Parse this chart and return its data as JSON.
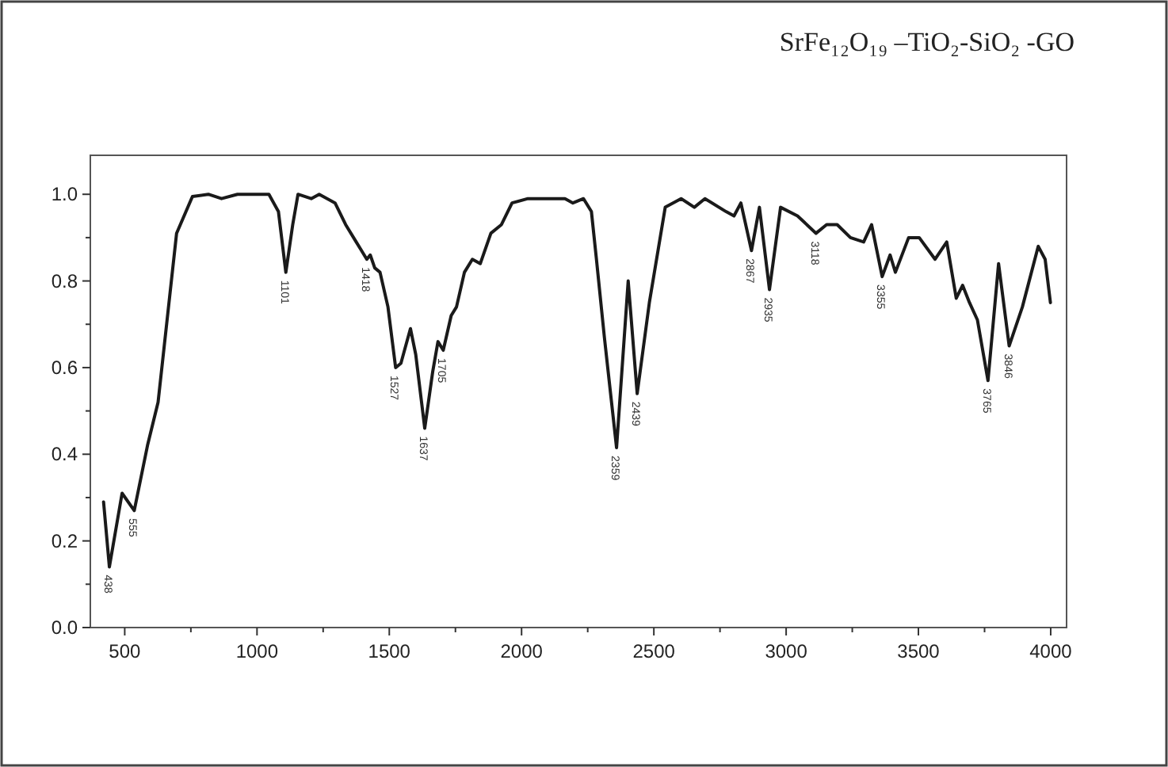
{
  "chart_data": {
    "type": "line",
    "title": "SrFe₁₂O₁₉ –TiO₂-SiO₂ -GO",
    "x": [
      420,
      442,
      490,
      536,
      586,
      626,
      696,
      756,
      816,
      866,
      926,
      1045,
      1081,
      1109,
      1135,
      1155,
      1205,
      1235,
      1295,
      1335,
      1375,
      1395,
      1415,
      1428,
      1445,
      1465,
      1495,
      1524,
      1544,
      1580,
      1600,
      1634,
      1664,
      1684,
      1704,
      1734,
      1754,
      1784,
      1814,
      1844,
      1884,
      1924,
      1964,
      2024,
      2164,
      2194,
      2234,
      2264,
      2283,
      2313,
      2359,
      2403,
      2437,
      2483,
      2543,
      2603,
      2653,
      2693,
      2773,
      2803,
      2829,
      2869,
      2899,
      2937,
      2979,
      3043,
      3113,
      3153,
      3193,
      3243,
      3293,
      3323,
      3363,
      3393,
      3413,
      3463,
      3503,
      3563,
      3607,
      3643,
      3667,
      3693,
      3723,
      3763,
      3803,
      3843,
      3893,
      3953,
      3979,
      3999
    ],
    "series": [
      {
        "color": "#1a1a1a",
        "values": [
          0.29,
          0.14,
          0.31,
          0.27,
          0.42,
          0.52,
          0.91,
          0.995,
          1.0,
          0.99,
          1.0,
          1.0,
          0.96,
          0.82,
          0.93,
          1.0,
          0.99,
          1.0,
          0.98,
          0.93,
          0.89,
          0.87,
          0.85,
          0.86,
          0.83,
          0.82,
          0.74,
          0.6,
          0.61,
          0.69,
          0.63,
          0.46,
          0.59,
          0.66,
          0.64,
          0.72,
          0.74,
          0.82,
          0.85,
          0.84,
          0.91,
          0.93,
          0.98,
          0.99,
          0.99,
          0.98,
          0.99,
          0.96,
          0.85,
          0.67,
          0.415,
          0.8,
          0.54,
          0.75,
          0.97,
          0.99,
          0.97,
          0.99,
          0.96,
          0.95,
          0.98,
          0.87,
          0.97,
          0.78,
          0.97,
          0.95,
          0.91,
          0.93,
          0.93,
          0.9,
          0.89,
          0.93,
          0.81,
          0.86,
          0.82,
          0.9,
          0.9,
          0.85,
          0.89,
          0.76,
          0.79,
          0.75,
          0.71,
          0.57,
          0.84,
          0.65,
          0.74,
          0.88,
          0.85,
          0.75
        ]
      }
    ],
    "xlim": [
      370,
      4060
    ],
    "ylim": [
      0,
      1.09
    ],
    "xticks": [
      500,
      {
        "value": 750,
        "label": null
      },
      1000,
      {
        "value": 1250,
        "label": null
      },
      1500,
      {
        "value": 1750,
        "label": null
      },
      2000,
      {
        "value": 2250,
        "label": null
      },
      2500,
      {
        "value": 2750,
        "label": null
      },
      3000,
      {
        "value": 3250,
        "label": null
      },
      3500,
      {
        "value": 3750,
        "label": null
      },
      4000
    ],
    "yticks": [
      {
        "value": 0,
        "label": "0.0"
      },
      {
        "value": 0.1,
        "label": null
      },
      {
        "value": 0.2,
        "label": "0.2"
      },
      {
        "value": 0.3,
        "label": null
      },
      {
        "value": 0.4,
        "label": "0.4"
      },
      {
        "value": 0.5,
        "label": null
      },
      {
        "value": 0.6,
        "label": "0.6"
      },
      {
        "value": 0.7,
        "label": null
      },
      {
        "value": 0.8,
        "label": "0.8"
      },
      {
        "value": 0.9,
        "label": null
      },
      {
        "value": 1.0,
        "label": "1.0"
      }
    ],
    "annotations": [
      {
        "text": "438",
        "x": 442,
        "y": 0.14
      },
      {
        "text": "555",
        "x": 536,
        "y": 0.27
      },
      {
        "text": "1101",
        "x": 1109,
        "y": 0.82
      },
      {
        "text": "1418",
        "x": 1415,
        "y": 0.85
      },
      {
        "text": "1527",
        "x": 1524,
        "y": 0.6
      },
      {
        "text": "1637",
        "x": 1634,
        "y": 0.46
      },
      {
        "text": "1705",
        "x": 1704,
        "y": 0.64
      },
      {
        "text": "2359",
        "x": 2359,
        "y": 0.415
      },
      {
        "text": "2439",
        "x": 2437,
        "y": 0.54
      },
      {
        "text": "2867",
        "x": 2869,
        "y": 0.87
      },
      {
        "text": "2935",
        "x": 2937,
        "y": 0.78
      },
      {
        "text": "3118",
        "x": 3113,
        "y": 0.91
      },
      {
        "text": "3355",
        "x": 3363,
        "y": 0.81
      },
      {
        "text": "3765",
        "x": 3763,
        "y": 0.57
      },
      {
        "text": "3846",
        "x": 3843,
        "y": 0.65
      }
    ],
    "grid": false,
    "marker": "none",
    "line_style": "solid"
  }
}
